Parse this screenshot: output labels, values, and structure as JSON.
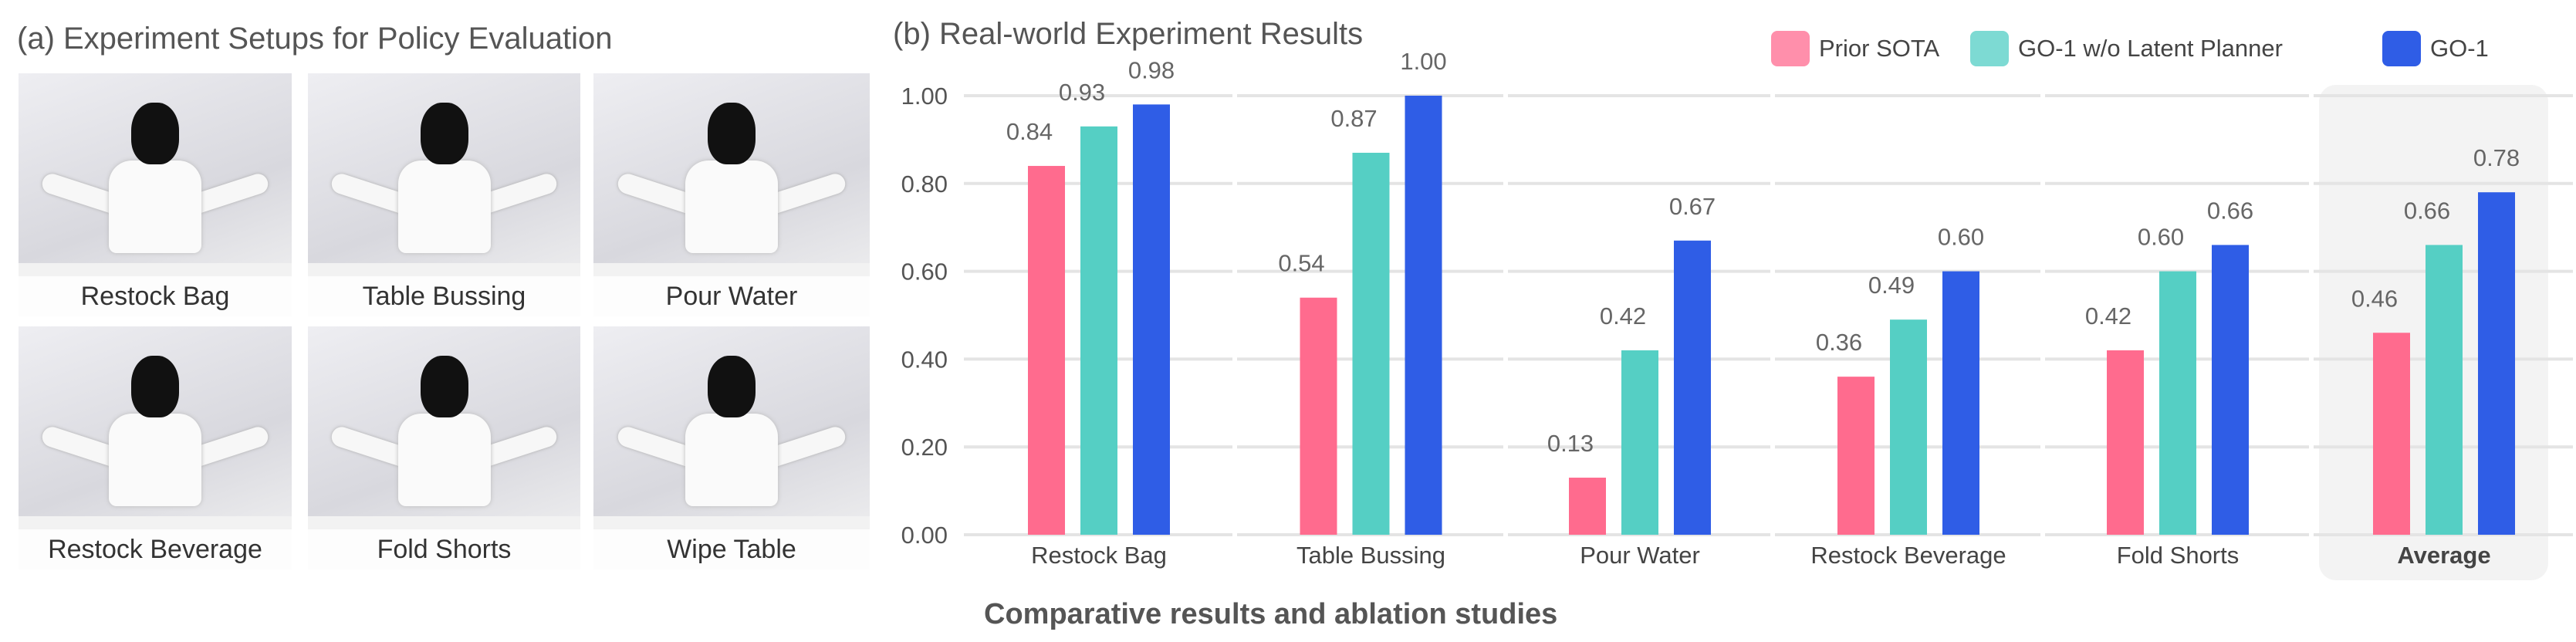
{
  "panel_a": {
    "title": "(a) Experiment Setups for Policy Evaluation",
    "photos": [
      {
        "label": "Restock Bag"
      },
      {
        "label": "Table Bussing"
      },
      {
        "label": "Pour Water"
      },
      {
        "label": "Restock Beverage"
      },
      {
        "label": "Fold Shorts"
      },
      {
        "label": "Wipe Table"
      }
    ]
  },
  "caption": "Comparative results and ablation studies",
  "chart_data": {
    "type": "bar",
    "title": "(b) Real-world Experiment Results",
    "xlabel": "",
    "ylabel": "",
    "ylim": [
      0,
      1.0
    ],
    "yticks": [
      "0.00",
      "0.20",
      "0.40",
      "0.60",
      "0.80",
      "1.00"
    ],
    "grid": true,
    "legend": "top-right",
    "categories": [
      "Restock Bag",
      "Table Bussing",
      "Pour Water",
      "Restock Beverage",
      "Fold Shorts",
      "Average"
    ],
    "highlighted_category": "Average",
    "series": [
      {
        "name": "Prior SOTA",
        "color": "#ff6b8e",
        "values": [
          0.84,
          0.54,
          0.13,
          0.36,
          0.42,
          0.46
        ]
      },
      {
        "name": "GO-1 w/o Latent Planner",
        "color": "#55cfc4",
        "values": [
          0.93,
          0.87,
          0.42,
          0.49,
          0.6,
          0.66
        ]
      },
      {
        "name": "GO-1",
        "color": "#2f5de6",
        "values": [
          0.98,
          1.0,
          0.67,
          0.6,
          0.66,
          0.78
        ]
      }
    ]
  }
}
